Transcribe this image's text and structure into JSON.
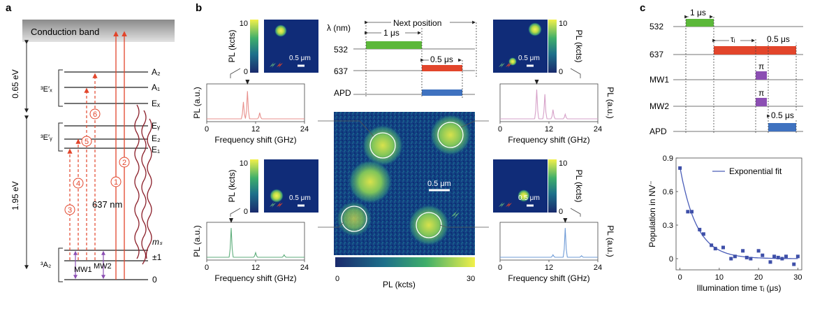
{
  "panel_a": {
    "letter": "a",
    "conduction_band": "Conduction band",
    "energy_top": "0.65 eV",
    "energy_bottom": "1.95 eV",
    "state_ex_group": "³E′ₓ",
    "state_ey_group": "³E′ᵧ",
    "state_ground": "³A₂",
    "levels": [
      "A₂",
      "A₁",
      "Eₓ",
      "Eᵧ",
      "E₂",
      "E₁"
    ],
    "ms_label": "mₛ",
    "ms_pm1": "±1",
    "ms_0": "0",
    "mw1": "MW1",
    "mw2": "MW2",
    "wavelength": "637 nm",
    "transitions": [
      "1",
      "2",
      "3",
      "4",
      "5",
      "6"
    ]
  },
  "panel_b": {
    "letter": "b",
    "spectra": [
      {
        "id": "top-left",
        "ylabel": "PL (a.u.)",
        "xlabel": "Frequency shift (GHz)",
        "ticks": [
          "0",
          "12",
          "24"
        ],
        "color": "#e8908c"
      },
      {
        "id": "top-right",
        "ylabel": "PL (a.u.)",
        "xlabel": "Frequency shift (GHz)",
        "ticks": [
          "0",
          "12",
          "24"
        ],
        "color": "#d6a0c8"
      },
      {
        "id": "bottom-left",
        "ylabel": "PL (a.u.)",
        "xlabel": "Frequency shift (GHz)",
        "ticks": [
          "0",
          "12",
          "24"
        ],
        "color": "#5fae7c"
      },
      {
        "id": "bottom-right",
        "ylabel": "PL (a.u.)",
        "xlabel": "Frequency shift (GHz)",
        "ticks": [
          "0",
          "12",
          "24"
        ],
        "color": "#6f9bd6"
      }
    ],
    "inset_ylabel": "PL (kcts)",
    "inset_max": "10",
    "inset_min": "0",
    "inset_scale": "0.5 μm",
    "map_scale": "0.5 μm",
    "colorbar_label": "PL (kcts)",
    "colorbar_min": "0",
    "colorbar_max": "30",
    "sequence": {
      "title": "Next position",
      "lambda_label": "λ (nm)",
      "rows": [
        "532",
        "637",
        "APD"
      ],
      "dur_532": "1 μs",
      "dur_637": "0.5 μs"
    }
  },
  "panel_c": {
    "letter": "c",
    "rows": [
      "532",
      "637",
      "MW1",
      "MW2",
      "APD"
    ],
    "dur_532": "1 μs",
    "tau": "τᵢ",
    "dur_637": "0.5 μs",
    "pi": "π",
    "dur_apd": "0.5 μs",
    "colors": {
      "g532": "#5cb83a",
      "r637": "#e2452b",
      "mw": "#8c4fb3",
      "apd": "#3f72c0"
    },
    "chart_data": {
      "type": "scatter",
      "xlabel": "Illumination time τᵢ (μs)",
      "ylabel": "Population in NV⁻",
      "legend": "Exponential fit",
      "xlim": [
        -1,
        31
      ],
      "ylim": [
        -0.1,
        0.9
      ],
      "xticks": [
        "0",
        "10",
        "20",
        "30"
      ],
      "yticks": [
        "0",
        "0.3",
        "0.6",
        "0.9"
      ],
      "x": [
        0,
        2,
        3,
        5,
        6,
        8,
        9,
        11,
        13,
        14,
        16,
        17,
        18,
        20,
        21,
        23,
        24,
        25,
        26,
        27,
        29,
        30
      ],
      "y": [
        0.81,
        0.42,
        0.42,
        0.26,
        0.22,
        0.12,
        0.09,
        0.1,
        0.0,
        0.02,
        0.07,
        0.01,
        0.0,
        0.07,
        0.03,
        -0.03,
        0.02,
        0.01,
        0.0,
        0.02,
        -0.05,
        0.02
      ],
      "fit": {
        "a": 0.82,
        "tau": 4.2,
        "c": 0.0
      }
    }
  }
}
